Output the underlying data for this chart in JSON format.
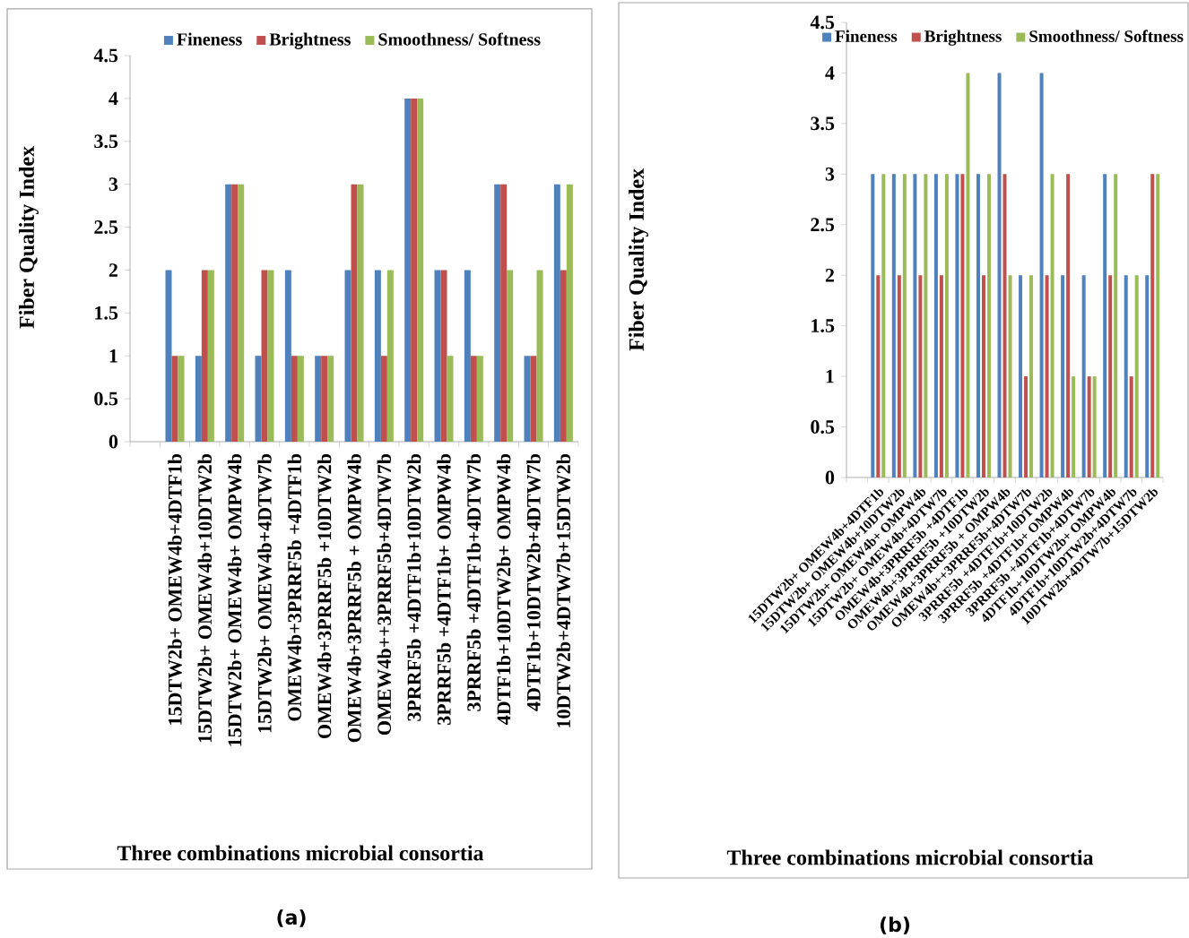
{
  "chart_data": [
    {
      "type": "bar",
      "xlabel": "Three combinations microbial consortia",
      "ylabel": "Fiber Quality Index",
      "annotations": [
        "(a)"
      ],
      "legend": "top",
      "categories": [
        null,
        "15DTW2b+ OMEW4b+4DTF1b",
        "15DTW2b+ OMEW4b+10DTW2b",
        "15DTW2b+ OMEW4b+ OMPW4b",
        "15DTW2b+ OMEW4b+4DTW7b",
        "OMEW4b+3PRRF5b +4DTF1b",
        "OMEW4b+3PRRF5b +10DTW2b",
        "OMEW4b+3PRRF5b + OMPW4b",
        "OMEW4b++3PRRF5b+4DTW7b",
        "3PRRF5b +4DTF1b+10DTW2b",
        "3PRRF5b +4DTF1b+ OMPW4b",
        "3PRRF5b +4DTF1b+4DTW7b",
        "4DTF1b+10DTW2b+ OMPW4b",
        "4DTF1b+10DTW2b+4DTW7b",
        "10DTW2b+4DTW7b+15DTW2b"
      ],
      "series": [
        {
          "name": "Fineness",
          "color": "#4f81bd",
          "values": [
            null,
            2,
            1,
            3,
            1,
            2,
            1,
            2,
            2,
            4,
            2,
            2,
            3,
            1,
            3
          ]
        },
        {
          "name": "Brightness",
          "color": "#c0504d",
          "values": [
            null,
            1,
            2,
            3,
            2,
            1,
            1,
            3,
            1,
            4,
            2,
            1,
            3,
            1,
            2
          ]
        },
        {
          "name": "Smoothness/ Softness",
          "color": "#9bbb59",
          "values": [
            null,
            1,
            2,
            3,
            2,
            1,
            1,
            3,
            2,
            4,
            1,
            1,
            2,
            2,
            3
          ]
        }
      ],
      "ylim": [
        0,
        4.5
      ],
      "yticks": [
        0,
        0.5,
        1,
        1.5,
        2,
        2.5,
        3,
        3.5,
        4,
        4.5
      ]
    },
    {
      "type": "bar",
      "xlabel": "Three combinations microbial consortia",
      "ylabel": "Fiber Quality Index",
      "annotations": [
        "(b)"
      ],
      "legend": "top",
      "categories": [
        null,
        "15DTW2b+ OMEW4b+4DTF1b",
        "15DTW2b+ OMEW4b+10DTW2b",
        "15DTW2b+ OMEW4b+ OMPW4b",
        "15DTW2b+ OMEW4b+4DTW7b",
        "OMEW4b+3PRRF5b +4DTF1b",
        "OMEW4b+3PRRF5b +10DTW2b",
        "OMEW4b+3PRRF5b + OMPW4b",
        "OMEW4b++3PRRF5b+4DTW7b",
        "3PRRF5b +4DTF1b+10DTW2b",
        "3PRRF5b +4DTF1b+ OMPW4b",
        "3PRRF5b +4DTF1b+4DTW7b",
        "4DTF1b+10DTW2b+ OMPW4b",
        "4DTF1b+10DTW2b+4DTW7b",
        "10DTW2b+4DTW7b+15DTW2b"
      ],
      "series": [
        {
          "name": "Fineness",
          "color": "#4f81bd",
          "values": [
            null,
            3,
            3,
            3,
            3,
            3,
            3,
            4,
            2,
            4,
            2,
            2,
            3,
            2,
            2
          ]
        },
        {
          "name": "Brightness",
          "color": "#c0504d",
          "values": [
            null,
            2,
            2,
            2,
            2,
            3,
            2,
            3,
            1,
            2,
            3,
            1,
            2,
            1,
            3
          ]
        },
        {
          "name": "Smoothness/ Softness",
          "color": "#9bbb59",
          "values": [
            null,
            3,
            3,
            3,
            3,
            4,
            3,
            2,
            2,
            3,
            1,
            1,
            3,
            2,
            3
          ]
        }
      ],
      "ylim": [
        0,
        4.5
      ],
      "yticks": [
        0,
        0.5,
        1,
        1.5,
        2,
        2.5,
        3,
        3.5,
        4,
        4.5
      ]
    }
  ]
}
